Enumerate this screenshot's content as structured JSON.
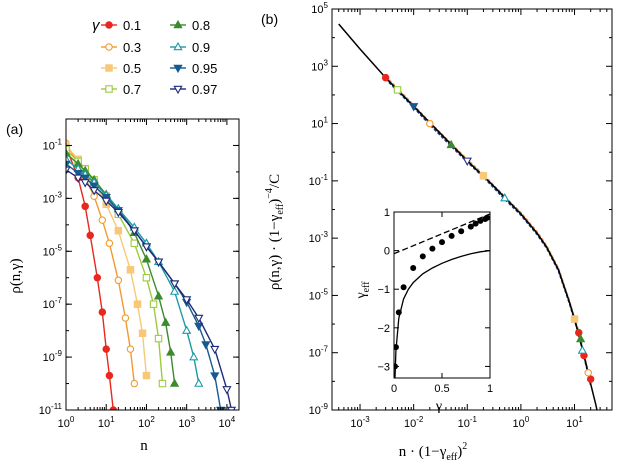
{
  "chart_data": [
    {
      "panel": "(a)",
      "type": "line",
      "xscale": "log",
      "yscale": "log",
      "xlim": [
        1,
        20000
      ],
      "ylim": [
        1e-11,
        1
      ],
      "xlabel": "n",
      "ylabel": "ρ(n,γ)",
      "xticks": [
        {
          "value": 1,
          "label": "10",
          "exp": "0"
        },
        {
          "value": 10,
          "label": "10",
          "exp": "1"
        },
        {
          "value": 100,
          "label": "10",
          "exp": "2"
        },
        {
          "value": 1000,
          "label": "10",
          "exp": "3"
        },
        {
          "value": 10000,
          "label": "10",
          "exp": "4"
        }
      ],
      "yticks": [
        {
          "value": 0.1,
          "label": "10",
          "exp": "-1"
        },
        {
          "value": 0.001,
          "label": "10",
          "exp": "-3"
        },
        {
          "value": 1e-05,
          "label": "10",
          "exp": "-5"
        },
        {
          "value": 1e-07,
          "label": "10",
          "exp": "-7"
        },
        {
          "value": 1e-09,
          "label": "10",
          "exp": "-9"
        },
        {
          "value": 1e-11,
          "label": "10",
          "exp": "-11"
        }
      ],
      "legend_title": "γ",
      "series": [
        {
          "name": "0.1",
          "color": "#e8271f",
          "marker": "circle-filled",
          "x": [
            1,
            2,
            3,
            4,
            6,
            8,
            10,
            12,
            15
          ],
          "y": [
            0.09,
            0.006,
            0.0005,
            4e-05,
            1e-06,
            5e-08,
            2e-09,
            2e-10,
            1e-11
          ]
        },
        {
          "name": "0.3",
          "color": "#f29a2e",
          "marker": "circle-open",
          "x": [
            1,
            2,
            3,
            5,
            8,
            12,
            20,
            30,
            40,
            50
          ],
          "y": [
            0.12,
            0.02,
            0.006,
            0.0012,
            0.00015,
            2e-05,
            8e-07,
            3e-08,
            2e-09,
            1e-10
          ]
        },
        {
          "name": "0.5",
          "color": "#f8c878",
          "marker": "square-filled",
          "x": [
            1,
            2,
            3,
            5,
            10,
            20,
            40,
            60,
            80,
            100
          ],
          "y": [
            0.1,
            0.03,
            0.013,
            0.004,
            0.0006,
            6e-05,
            2e-06,
            1e-07,
            8e-09,
            2e-10
          ]
        },
        {
          "name": "0.7",
          "color": "#9ccb3b",
          "marker": "square-open",
          "x": [
            1,
            2,
            3,
            5,
            10,
            20,
            50,
            100,
            150,
            200,
            250
          ],
          "y": [
            0.07,
            0.025,
            0.013,
            0.005,
            0.0012,
            0.00025,
            2e-05,
            1e-06,
            1e-07,
            5e-09,
            1e-10
          ]
        },
        {
          "name": "0.8",
          "color": "#3c8a2e",
          "marker": "triangle-filled",
          "x": [
            1,
            2,
            3,
            5,
            10,
            20,
            50,
            100,
            200,
            300,
            400,
            500
          ],
          "y": [
            0.05,
            0.02,
            0.011,
            0.005,
            0.0014,
            0.0004,
            5e-05,
            5e-06,
            2e-07,
            2e-08,
            1.5e-09,
            1e-10
          ]
        },
        {
          "name": "0.9",
          "color": "#1b9aa8",
          "marker": "triangle-open",
          "x": [
            1,
            2,
            3,
            5,
            10,
            20,
            50,
            100,
            200,
            500,
            1000,
            1500,
            2000
          ],
          "y": [
            0.03,
            0.013,
            0.008,
            0.004,
            0.0013,
            0.0004,
            8e-05,
            2e-05,
            4e-06,
            3e-07,
            1e-08,
            1e-09,
            1e-10
          ]
        },
        {
          "name": "0.95",
          "color": "#175a8f",
          "marker": "triangle-down-filled",
          "x": [
            1,
            2,
            3,
            5,
            10,
            20,
            50,
            100,
            200,
            500,
            1000,
            2000,
            3000,
            5000,
            7000
          ],
          "y": [
            0.02,
            0.009,
            0.006,
            0.003,
            0.0011,
            0.00035,
            6e-05,
            1.5e-05,
            4e-06,
            6e-07,
            1.2e-07,
            1.5e-08,
            3e-09,
            2e-10,
            1e-11
          ]
        },
        {
          "name": "0.97",
          "color": "#1e2a7a",
          "marker": "triangle-down-open",
          "x": [
            1,
            2,
            3,
            5,
            10,
            20,
            50,
            100,
            200,
            500,
            1000,
            2000,
            5000,
            10000,
            13000
          ],
          "y": [
            0.012,
            0.006,
            0.004,
            0.002,
            0.0008,
            0.0003,
            6e-05,
            1.5e-05,
            4e-06,
            6e-07,
            1.5e-07,
            3e-08,
            2e-09,
            6e-11,
            1e-11
          ]
        }
      ]
    },
    {
      "panel": "(b)",
      "type": "line",
      "xscale": "log",
      "yscale": "log",
      "xlim": [
        0.0003,
        50
      ],
      "ylim": [
        1e-09,
        100000.0
      ],
      "xlabel_parts": [
        "n · (1−γ",
        "eff",
        ")",
        "2"
      ],
      "ylabel_parts": [
        "ρ(n,γ) · (1−γ",
        "eff",
        ")",
        "−4",
        "/C"
      ],
      "xticks": [
        {
          "value": 0.001,
          "label": "10",
          "exp": "-3"
        },
        {
          "value": 0.01,
          "label": "10",
          "exp": "-2"
        },
        {
          "value": 0.1,
          "label": "10",
          "exp": "-1"
        },
        {
          "value": 1,
          "label": "10",
          "exp": "0"
        },
        {
          "value": 10,
          "label": "10",
          "exp": "1"
        }
      ],
      "yticks": [
        {
          "value": 100000.0,
          "label": "10",
          "exp": "5"
        },
        {
          "value": 1000.0,
          "label": "10",
          "exp": "3"
        },
        {
          "value": 10,
          "label": "10",
          "exp": "1"
        },
        {
          "value": 0.1,
          "label": "10",
          "exp": "-1"
        },
        {
          "value": 0.001,
          "label": "10",
          "exp": "-3"
        },
        {
          "value": 1e-05,
          "label": "10",
          "exp": "-5"
        },
        {
          "value": 1e-07,
          "label": "10",
          "exp": "-7"
        },
        {
          "value": 1e-09,
          "label": "10",
          "exp": "-9"
        }
      ],
      "master_curve": {
        "x": [
          0.0004,
          0.001,
          0.003,
          0.01,
          0.03,
          0.1,
          0.3,
          1,
          2,
          3,
          5,
          8,
          10,
          15,
          20,
          25,
          30
        ],
        "y": [
          30000,
          4000,
          400,
          40,
          5,
          0.5,
          0.07,
          0.007,
          0.0015,
          0.0005,
          8e-05,
          6e-06,
          1.5e-06,
          8e-08,
          8e-09,
          1.5e-09,
          3e-10
        ]
      },
      "collapsed_points": {
        "x": [
          0.003,
          0.005,
          0.01,
          0.02,
          0.05,
          0.1,
          0.2,
          0.5,
          1,
          2,
          3,
          5,
          8,
          10,
          12,
          15,
          18,
          20
        ],
        "y": [
          400,
          150,
          40,
          10,
          1.8,
          0.5,
          0.15,
          0.025,
          0.007,
          0.0015,
          0.0005,
          8e-05,
          6e-06,
          1.5e-06,
          5e-07,
          8e-08,
          2e-08,
          8e-09
        ]
      }
    },
    {
      "panel": "inset",
      "type": "scatter",
      "xlim": [
        0,
        1
      ],
      "ylim": [
        -3.3,
        1
      ],
      "xlabel": "γ",
      "ylabel_parts": [
        "γ",
        "eff"
      ],
      "xticks": [
        {
          "value": 0,
          "label": "0"
        },
        {
          "value": 0.5,
          "label": "0.5"
        },
        {
          "value": 1,
          "label": "1"
        }
      ],
      "yticks": [
        {
          "value": 1,
          "label": "1"
        },
        {
          "value": 0,
          "label": "0"
        },
        {
          "value": -1,
          "label": "−1"
        },
        {
          "value": -2,
          "label": "−2"
        },
        {
          "value": -3,
          "label": "−3"
        }
      ],
      "points": {
        "x": [
          0.01,
          0.02,
          0.05,
          0.1,
          0.2,
          0.3,
          0.4,
          0.5,
          0.6,
          0.7,
          0.8,
          0.85,
          0.9,
          0.95,
          0.97
        ],
        "y": [
          -3.0,
          -2.5,
          -1.6,
          -0.95,
          -0.45,
          -0.15,
          0.05,
          0.22,
          0.38,
          0.5,
          0.62,
          0.7,
          0.77,
          0.82,
          0.85
        ]
      },
      "dashed_line": {
        "x": [
          0,
          1
        ],
        "y": [
          -0.08,
          0.95
        ]
      },
      "solid_curve": {
        "x": [
          0.01,
          0.02,
          0.05,
          0.1,
          0.15,
          0.2,
          0.3,
          0.4,
          0.5,
          0.6,
          0.7,
          0.8,
          0.9,
          1.0
        ],
        "y": [
          -3.3,
          -2.6,
          -1.75,
          -1.25,
          -1.0,
          -0.83,
          -0.6,
          -0.45,
          -0.33,
          -0.23,
          -0.15,
          -0.08,
          -0.03,
          0.0
        ]
      }
    }
  ]
}
